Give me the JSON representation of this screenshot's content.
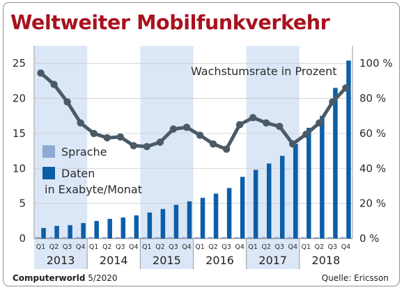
{
  "title": "Weltweiter Mobilfunkverkehr",
  "footer": {
    "publication": "Computerworld",
    "issue": "5/2020",
    "source": "Quelle: Ericsson"
  },
  "colors": {
    "title": "#a8121e",
    "sprache": "#8fa9d4",
    "daten": "#0d5ea8",
    "line": "#4a5a66",
    "year_band": "#dbe7f6"
  },
  "chart_data": {
    "type": "bar+line",
    "quarters": [
      "Q1",
      "Q2",
      "Q3",
      "Q4",
      "Q1",
      "Q2",
      "Q3",
      "Q4",
      "Q1",
      "Q2",
      "Q3",
      "Q4",
      "Q1",
      "Q2",
      "Q3",
      "Q4",
      "Q1",
      "Q2",
      "Q3",
      "Q4",
      "Q1",
      "Q2",
      "Q3",
      "Q4"
    ],
    "years": [
      "2013",
      "2014",
      "2015",
      "2016",
      "2017",
      "2018"
    ],
    "left_axis": {
      "ticks": [
        0,
        5,
        10,
        15,
        20,
        25
      ],
      "range": [
        0,
        27.5
      ]
    },
    "right_axis": {
      "ticks": [
        "0 %",
        "20 %",
        "40 %",
        "60 %",
        "80 %",
        "100 %"
      ],
      "range": [
        0,
        110
      ]
    },
    "legend": [
      {
        "label": "Sprache",
        "color": "#8fa9d4"
      },
      {
        "label": "Daten",
        "color": "#0d5ea8"
      }
    ],
    "legend_note": "in Exabyte/Monat",
    "line_label": "Wachstumsrate in Prozent",
    "series": [
      {
        "name": "Sprache",
        "axis": "left",
        "type": "bar",
        "values": [
          0.2,
          0.2,
          0.2,
          0.2,
          0.2,
          0.2,
          0.2,
          0.2,
          0.2,
          0.2,
          0.2,
          0.2,
          0.2,
          0.2,
          0.2,
          0.2,
          0.2,
          0.2,
          0.2,
          0.2,
          0.2,
          0.2,
          0.2,
          0.2
        ]
      },
      {
        "name": "Daten",
        "axis": "left",
        "type": "bar",
        "values": [
          1.5,
          1.8,
          1.9,
          2.2,
          2.5,
          2.8,
          3.0,
          3.3,
          3.7,
          4.2,
          4.8,
          5.3,
          5.8,
          6.4,
          7.2,
          8.8,
          9.8,
          10.7,
          11.8,
          13.5,
          15.8,
          17.5,
          21.5,
          25.4
        ]
      },
      {
        "name": "Wachstumsrate in Prozent",
        "axis": "right",
        "type": "line",
        "values": [
          94.5,
          88,
          78,
          66,
          60,
          57.5,
          58,
          53,
          52.5,
          55,
          62.5,
          63.5,
          59,
          54,
          51,
          65,
          69,
          66,
          64,
          54,
          59.5,
          66,
          78,
          86
        ]
      }
    ]
  }
}
